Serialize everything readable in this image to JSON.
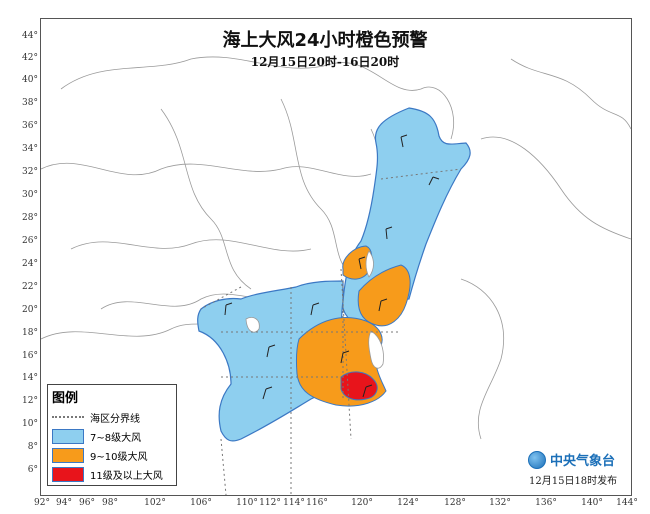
{
  "title": "海上大风24小时橙色预警",
  "subtitle": "12月15日20时-16日20时",
  "lat_ticks": [
    "44°",
    "42°",
    "40°",
    "38°",
    "36°",
    "34°",
    "32°",
    "30°",
    "28°",
    "26°",
    "24°",
    "22°",
    "20°",
    "18°",
    "16°",
    "14°",
    "12°",
    "10°",
    "8°",
    "6°"
  ],
  "lon_ticks": [
    "92°",
    "94°",
    "96°",
    "98°",
    "102°",
    "106°",
    "110°",
    "112°",
    "114°",
    "116°",
    "120°",
    "124°",
    "128°",
    "132°",
    "136°",
    "140°",
    "144°"
  ],
  "legend": {
    "title": "图例",
    "items": [
      {
        "label": "海区分界线",
        "type": "dotted-line"
      },
      {
        "label": "7~8级大风",
        "color": "#8ecfef"
      },
      {
        "label": "9~10级大风",
        "color": "#f79b1b"
      },
      {
        "label": "11级及以上大风",
        "color": "#e8141b"
      }
    ]
  },
  "colors": {
    "sea_light": "#8ecfef",
    "orange": "#f79b1b",
    "red": "#e8141b",
    "outline": "#3b78c4",
    "land_border": "#9a9a9a"
  },
  "publisher": {
    "name": "中央气象台",
    "time": "12月15日18时发布",
    "icon": "cma-logo-icon"
  }
}
